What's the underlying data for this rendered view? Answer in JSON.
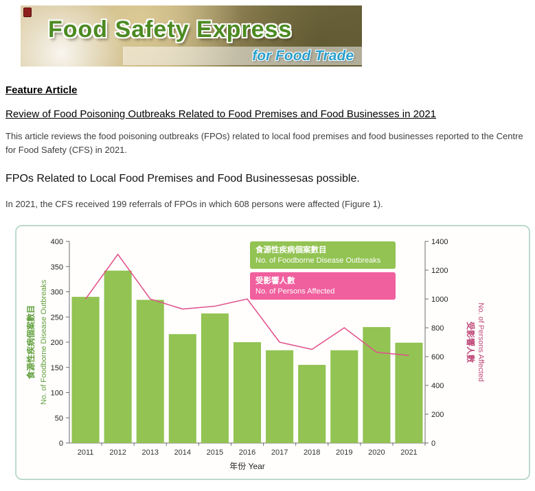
{
  "banner": {
    "title": "Food Safety Express",
    "subtitle": "for Food Trade"
  },
  "article": {
    "section_label": "Feature Article",
    "title": "Review of Food Poisoning Outbreaks Related to Food Premises and Food Businesses in 2021",
    "intro": "This article reviews the food poisoning outbreaks (FPOs) related to local food premises and food businesses reported to the Centre for Food Safety (CFS) in 2021.",
    "subheading": "FPOs Related to Local Food Premises and Food Businessesas possible.",
    "paragraph": "In 2021, the CFS received 199 referrals of FPOs in which 608 persons were affected (Figure 1)."
  },
  "chart_data": {
    "type": "bar",
    "subtype": "bar+line combo, dual y-axes",
    "categories": [
      "2011",
      "2012",
      "2013",
      "2014",
      "2015",
      "2016",
      "2017",
      "2018",
      "2019",
      "2020",
      "2021"
    ],
    "series": [
      {
        "name": "食源性疾病個案數目 No. of Foodborne Disease Outbreaks",
        "type": "bar",
        "axis": "left",
        "color": "#92c353",
        "values": [
          290,
          342,
          284,
          216,
          257,
          200,
          184,
          155,
          184,
          230,
          199
        ]
      },
      {
        "name": "受影響人數 No. of Persons Affected",
        "type": "line",
        "axis": "right",
        "color": "#e0558c",
        "values": [
          1000,
          1310,
          1000,
          930,
          950,
          1000,
          700,
          650,
          800,
          630,
          608
        ]
      }
    ],
    "left_axis": {
      "min": 0,
      "max": 400,
      "step": 50,
      "title_zh": "食源性疾病個案數目",
      "title_en": "No. of Foodborne Disease Outbreaks",
      "title_color": "#5f9e3a"
    },
    "right_axis": {
      "min": 0,
      "max": 1400,
      "step": 200,
      "title_zh": "受影響人數",
      "title_en": "No. of Persons Affected",
      "title_color": "#c04a7a"
    },
    "xlabel_zh": "年份",
    "xlabel_en": "Year",
    "grid": false,
    "legend_position": "top-right-inside",
    "legend": [
      {
        "bg": "#92c353",
        "line1": "食源性疾病個案數目",
        "line2": "No. of Foodborne Disease Outbreaks"
      },
      {
        "bg": "#f0609e",
        "line1": "受影響人數",
        "line2": "No. of Persons Affected"
      }
    ]
  }
}
